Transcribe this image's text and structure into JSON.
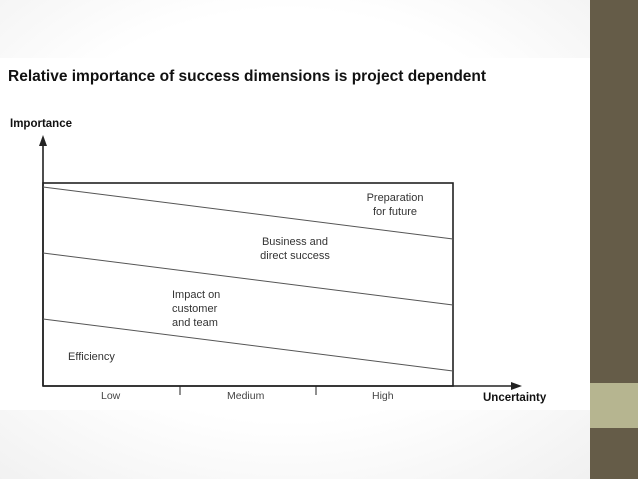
{
  "title": "Relative importance of success dimensions is project dependent",
  "y_axis_label": "Importance",
  "x_axis_label": "Uncertainty",
  "x_ticks": [
    "Low",
    "Medium",
    "High"
  ],
  "bands": [
    {
      "label_lines": [
        "Efficiency"
      ]
    },
    {
      "label_lines": [
        "Impact on",
        "customer",
        "and team"
      ]
    },
    {
      "label_lines": [
        "Business and",
        "direct success"
      ]
    },
    {
      "label_lines": [
        "Preparation",
        "for future"
      ]
    }
  ],
  "colors": {
    "sidebar": "#655c48",
    "sidebar_accent": "#b6b590",
    "lines": "#333333"
  }
}
